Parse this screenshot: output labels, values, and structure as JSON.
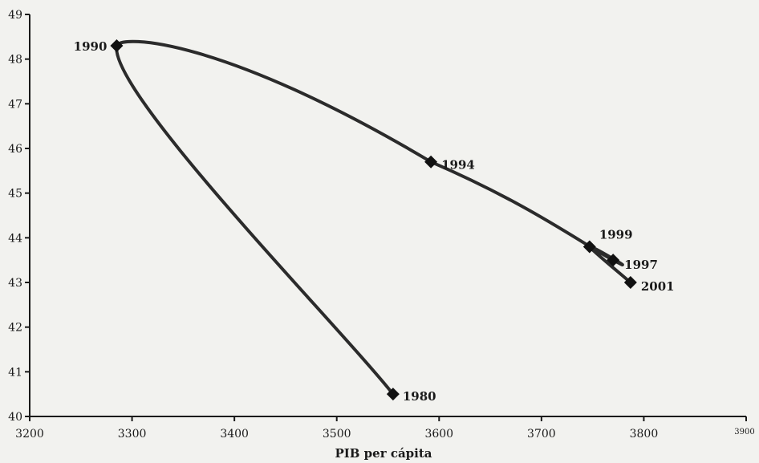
{
  "chart_data": {
    "type": "line",
    "title": "",
    "xlabel": "PIB per cápita",
    "ylabel": "",
    "xlim": [
      3200,
      3900
    ],
    "ylim": [
      40,
      49
    ],
    "x_ticks": [
      3200,
      3300,
      3400,
      3500,
      3600,
      3700,
      3800,
      3900
    ],
    "y_ticks": [
      40,
      41,
      42,
      43,
      44,
      45,
      46,
      47,
      48,
      49
    ],
    "grid": false,
    "legend": "none",
    "line_color": "#2b2b2b",
    "series": [
      {
        "points": [
          {
            "x": 3555,
            "y": 40.5,
            "label": "1980"
          },
          {
            "x": 3285,
            "y": 48.3,
            "label": "1990"
          },
          {
            "x": 3592,
            "y": 45.7,
            "label": "1994"
          },
          {
            "x": 3770,
            "y": 43.5,
            "label": "1997"
          },
          {
            "x": 3747,
            "y": 43.8,
            "label": "1999"
          },
          {
            "x": 3787,
            "y": 43.0,
            "label": "2001"
          }
        ]
      }
    ]
  }
}
